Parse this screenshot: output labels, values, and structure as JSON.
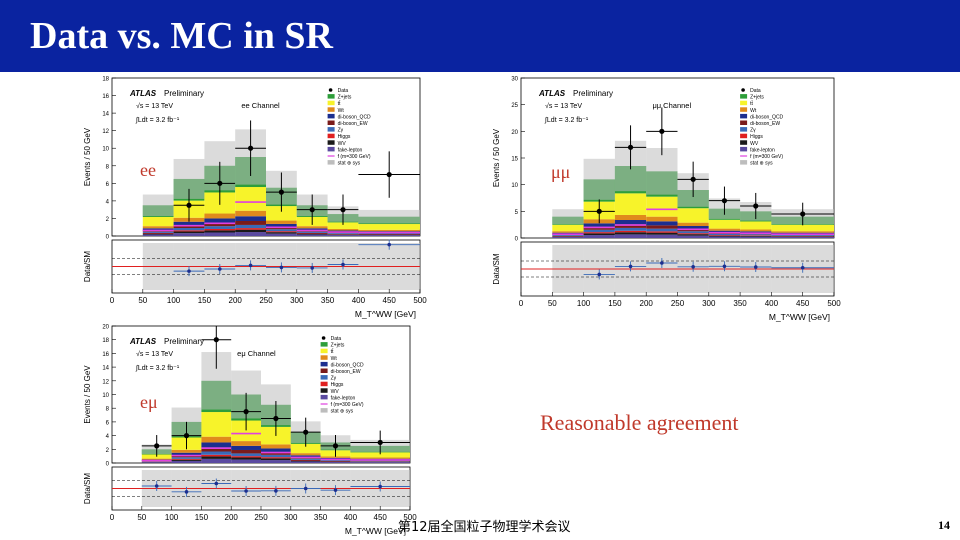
{
  "slide": {
    "title": "Data vs. MC in SR",
    "note": "Reasonable agreement",
    "footer": "第12届全国粒子物理学术会议",
    "page_number": "14"
  },
  "colors": {
    "title_bar": "#0a23a0",
    "accent_red": "#c0392b",
    "z_jets": "#2e9e3a",
    "ttbar": "#f7f32a",
    "wt": "#e08a1c",
    "diboson_qcd": "#1c2e8f",
    "diboson_ew": "#7a1b1b",
    "zgamma": "#3a6ab8",
    "higgs": "#e02020",
    "wv": "#1a1a1a",
    "fake_lepton": "#5a4aa0",
    "signal": "#e040e0",
    "uncertainty": "#bdbdbd"
  },
  "plots": [
    {
      "id": "ee",
      "channel_tag": "ee",
      "channel_text": "ee Channel",
      "atlas": "ATLAS",
      "preliminary": "Preliminary",
      "energy": "√s = 13 TeV",
      "lumi": "∫Ldt = 3.2 fb⁻¹",
      "ylabel": "Events / 50 GeV",
      "ratio_label": "Data/SM",
      "xlabel": "M_T^WW [GeV]",
      "ymax": 18,
      "yticks": [
        "0",
        "2",
        "4",
        "6",
        "8",
        "10",
        "12",
        "14",
        "16",
        "18"
      ],
      "xticks": [
        "0",
        "50",
        "100",
        "150",
        "200",
        "250",
        "300",
        "350",
        "400",
        "450",
        "500"
      ],
      "legend": [
        "Data",
        "Z+jets",
        "tt̄",
        "Wt",
        "di-boson_QCD",
        "di-boson_EW",
        "Zγ",
        "Higgs",
        "WV",
        "fake-lepton",
        "f (m=300 GeV)",
        "stat ⊕ sys"
      ],
      "bins": [
        [
          50,
          100
        ],
        [
          100,
          150
        ],
        [
          150,
          200
        ],
        [
          200,
          250
        ],
        [
          250,
          300
        ],
        [
          300,
          350
        ],
        [
          350,
          400
        ],
        [
          400,
          500
        ]
      ],
      "total_mc": [
        3.5,
        6.5,
        8.0,
        9.0,
        5.5,
        3.5,
        2.5,
        2.2
      ],
      "data": [
        null,
        3.5,
        6.0,
        10.0,
        5.0,
        3.0,
        3.0,
        7.0
      ]
    },
    {
      "id": "mumu",
      "channel_tag": "μμ",
      "channel_text": "μμ Channel",
      "atlas": "ATLAS",
      "preliminary": "Preliminary",
      "energy": "√s = 13 TeV",
      "lumi": "∫Ldt = 3.2 fb⁻¹",
      "ylabel": "Events / 50 GeV",
      "ratio_label": "Data/SM",
      "xlabel": "M_T^WW [GeV]",
      "ymax": 30,
      "yticks": [
        "0",
        "5",
        "10",
        "15",
        "20",
        "25",
        "30"
      ],
      "xticks": [
        "0",
        "50",
        "100",
        "150",
        "200",
        "250",
        "300",
        "350",
        "400",
        "450",
        "500"
      ],
      "legend": [
        "Data",
        "Z+jets",
        "tt̄",
        "Wt",
        "di-boson_QCD",
        "di-boson_EW",
        "Zγ",
        "Higgs",
        "WV",
        "fake-lepton",
        "f (m=300 GeV)",
        "stat ⊕ sys"
      ],
      "bins": [
        [
          50,
          100
        ],
        [
          100,
          150
        ],
        [
          150,
          200
        ],
        [
          200,
          250
        ],
        [
          250,
          300
        ],
        [
          300,
          350
        ],
        [
          350,
          400
        ],
        [
          400,
          500
        ]
      ],
      "total_mc": [
        4.0,
        11.0,
        13.5,
        12.5,
        9.0,
        5.5,
        5.0,
        4.0
      ],
      "data": [
        null,
        5.0,
        17.0,
        20.0,
        11.0,
        7.0,
        6.0,
        4.5
      ]
    },
    {
      "id": "emu",
      "channel_tag": "eμ",
      "channel_text": "eμ Channel",
      "atlas": "ATLAS",
      "preliminary": "Preliminary",
      "energy": "√s = 13 TeV",
      "lumi": "∫Ldt = 3.2 fb⁻¹",
      "ylabel": "Events / 50 GeV",
      "ratio_label": "Data/SM",
      "xlabel": "M_T^WW [GeV]",
      "ymax": 20,
      "yticks": [
        "0",
        "2",
        "4",
        "6",
        "8",
        "10",
        "12",
        "14",
        "16",
        "18",
        "20"
      ],
      "xticks": [
        "0",
        "50",
        "100",
        "150",
        "200",
        "250",
        "300",
        "350",
        "400",
        "450",
        "500"
      ],
      "legend": [
        "Data",
        "Z+jets",
        "tt̄",
        "Wt",
        "di-boson_QCD",
        "di-boson_EW",
        "Zγ",
        "Higgs",
        "WV",
        "fake-lepton",
        "f (m=300 GeV)",
        "stat ⊕ sys"
      ],
      "bins": [
        [
          50,
          100
        ],
        [
          100,
          150
        ],
        [
          150,
          200
        ],
        [
          200,
          250
        ],
        [
          250,
          300
        ],
        [
          300,
          350
        ],
        [
          350,
          400
        ],
        [
          400,
          500
        ]
      ],
      "total_mc": [
        2.0,
        6.0,
        12.0,
        10.0,
        8.5,
        4.5,
        3.0,
        2.5
      ],
      "data": [
        2.5,
        4.0,
        18.0,
        7.5,
        6.5,
        4.5,
        2.5,
        3.0
      ]
    }
  ]
}
